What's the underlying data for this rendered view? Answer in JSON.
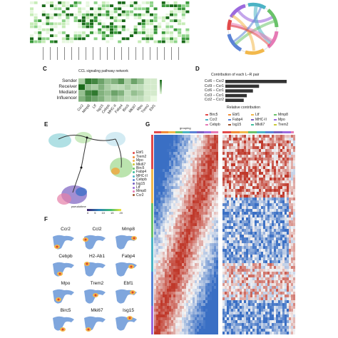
{
  "panels": {
    "C": "C",
    "D": "D",
    "E": "E",
    "F": "F",
    "G": "G"
  },
  "panel_c": {
    "title": "CCL signaling pathway network",
    "rows": [
      "Sender",
      "Receiver",
      "Mediator",
      "Influencer"
    ],
    "cols": [
      "Ccr2",
      "Mmp8",
      "Ltf",
      "Isg15",
      "Cebpb",
      "MHC-II",
      "Fabp4",
      "Birc5",
      "Mki67",
      "Mpo",
      "Trem2",
      "Ebf1"
    ]
  },
  "panel_d": {
    "title": "Contribution of each L–R pair",
    "pairs": [
      "Ccl6 – Ccr2",
      "Ccl9 – Ccr1",
      "Ccl6 – Ccr1",
      "Ccl3 – Ccr1",
      "Ccl2 – Ccr2"
    ],
    "relative": [
      1.0,
      0.55,
      0.45,
      0.35,
      0.3
    ],
    "xlabel": "Relative contribution"
  },
  "panel_e": {
    "legend": [
      "Ebf1",
      "Trem2",
      "Mpo",
      "Mki67",
      "Birc5",
      "Fabp4",
      "MHC-II",
      "Cebpb",
      "Isg15",
      "Ltf",
      "Mmp8",
      "Ccr2"
    ],
    "pseudotime_label": "pseudotime",
    "ticks": [
      "0",
      "5",
      "10",
      "15",
      "20"
    ]
  },
  "panel_f": {
    "genes": [
      "Ccr2",
      "Ccl2",
      "Mmp8",
      "Cebpb",
      "H2-Ab1",
      "Fabp4",
      "Mpo",
      "Trem2",
      "Ebf1",
      "Birc5",
      "Mki67",
      "Isg15"
    ]
  },
  "panel_g": {
    "legend_title": "grouping",
    "legend_items": [
      "Birc5",
      "Ebf1",
      "Ltf",
      "Mmp8",
      "Ccr2",
      "Fabp4",
      "MHC-II",
      "Mpo",
      "Cebpb",
      "Isg15",
      "Mki67",
      "Trem2"
    ]
  },
  "colors": {
    "heat_red": "#c0392b",
    "heat_blue": "#3a6fc4",
    "heat_white": "#f4f4f4",
    "green_dark": "#1b6b1b",
    "green_light": "#cfeec4"
  }
}
